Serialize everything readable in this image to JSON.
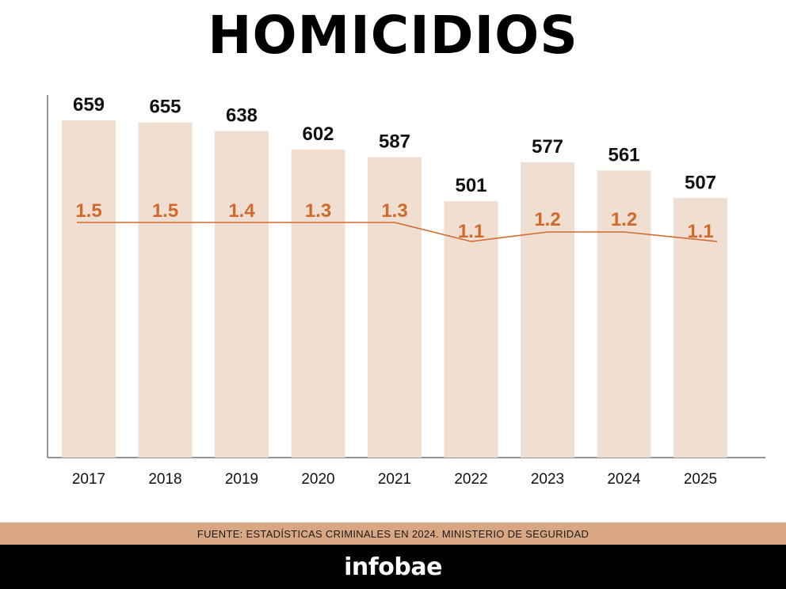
{
  "title": "HOMICIDIOS",
  "source": "FUENTE: ESTADÍSTICAS CRIMINALES EN 2024. MINISTERIO DE SEGURIDAD",
  "brand": "infobae",
  "colors": {
    "bar": "#f0dfd0",
    "rate": "#d2692c",
    "source_bar": "#d9a882",
    "axis": "#555555"
  },
  "chart_data": {
    "type": "bar",
    "categories": [
      "2017",
      "2018",
      "2019",
      "2020",
      "2021",
      "2022",
      "2023",
      "2024",
      "2025"
    ],
    "series": [
      {
        "values": [
          659,
          655,
          638,
          602,
          587,
          501,
          577,
          561,
          507
        ]
      },
      {
        "type": "line",
        "values": [
          1.5,
          1.5,
          1.4,
          1.3,
          1.3,
          1.1,
          1.2,
          1.2,
          1.1
        ]
      }
    ],
    "ylim": [
      0,
      659
    ],
    "grid": false,
    "legend": "none"
  }
}
